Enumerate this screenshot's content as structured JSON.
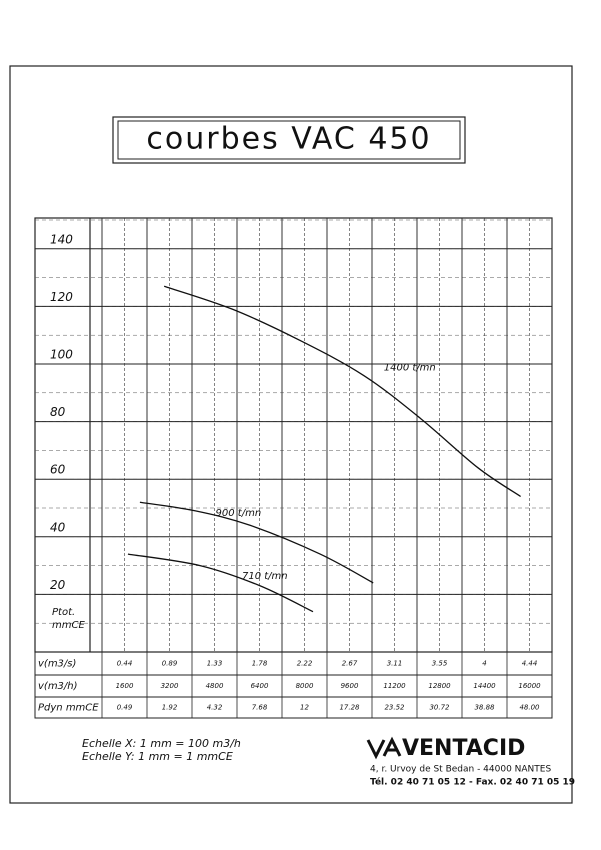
{
  "chart_data": {
    "type": "line",
    "title": "courbes VAC 450",
    "y_label": "Ptot.\nmmCE",
    "xlim": [
      0,
      16200
    ],
    "ylim": [
      0,
      150
    ],
    "yticks": [
      20,
      40,
      60,
      80,
      100,
      120,
      140
    ],
    "grid": true,
    "series": [
      {
        "name": "1400 t/mn",
        "color": "#111111",
        "x": [
          2600,
          5000,
          7400,
          9600,
          11600,
          13600,
          15100
        ],
        "values": [
          127,
          119,
          108,
          96,
          81,
          64,
          54
        ]
      },
      {
        "name": "900 t/mn",
        "color": "#111111",
        "x": [
          1750,
          3700,
          5610,
          8070,
          9930
        ],
        "values": [
          52,
          49,
          44,
          34,
          24
        ]
      },
      {
        "name": "710 t/mn",
        "color": "#111111",
        "x": [
          1330,
          3860,
          5960,
          7820
        ],
        "values": [
          34,
          30,
          23,
          14
        ]
      }
    ]
  },
  "table": {
    "rows": [
      {
        "label": "v(m3/s)",
        "cells": [
          "0.44",
          "0.89",
          "1.33",
          "1.78",
          "2.22",
          "2.67",
          "3.11",
          "3.55",
          "4",
          "4.44"
        ]
      },
      {
        "label": "v(m3/h)",
        "cells": [
          "1600",
          "3200",
          "4800",
          "6400",
          "8000",
          "9600",
          "11200",
          "12800",
          "14400",
          "16000"
        ]
      },
      {
        "label": "Pdyn mmCE",
        "cells": [
          "0.49",
          "1.92",
          "4.32",
          "7.68",
          "12",
          "17.28",
          "23.52",
          "30.72",
          "38.88",
          "48.00"
        ]
      }
    ]
  },
  "footer": {
    "scale_x": "Echelle X: 1 mm = 100 m3/h",
    "scale_y": "Echelle Y: 1 mm = 1 mmCE",
    "brand": "VENTACID",
    "address": "4, r. Urvoy de St Bedan - 44000 NANTES",
    "phone": "Tél. 02 40 71 05 12 - Fax. 02 40 71 05 19"
  }
}
